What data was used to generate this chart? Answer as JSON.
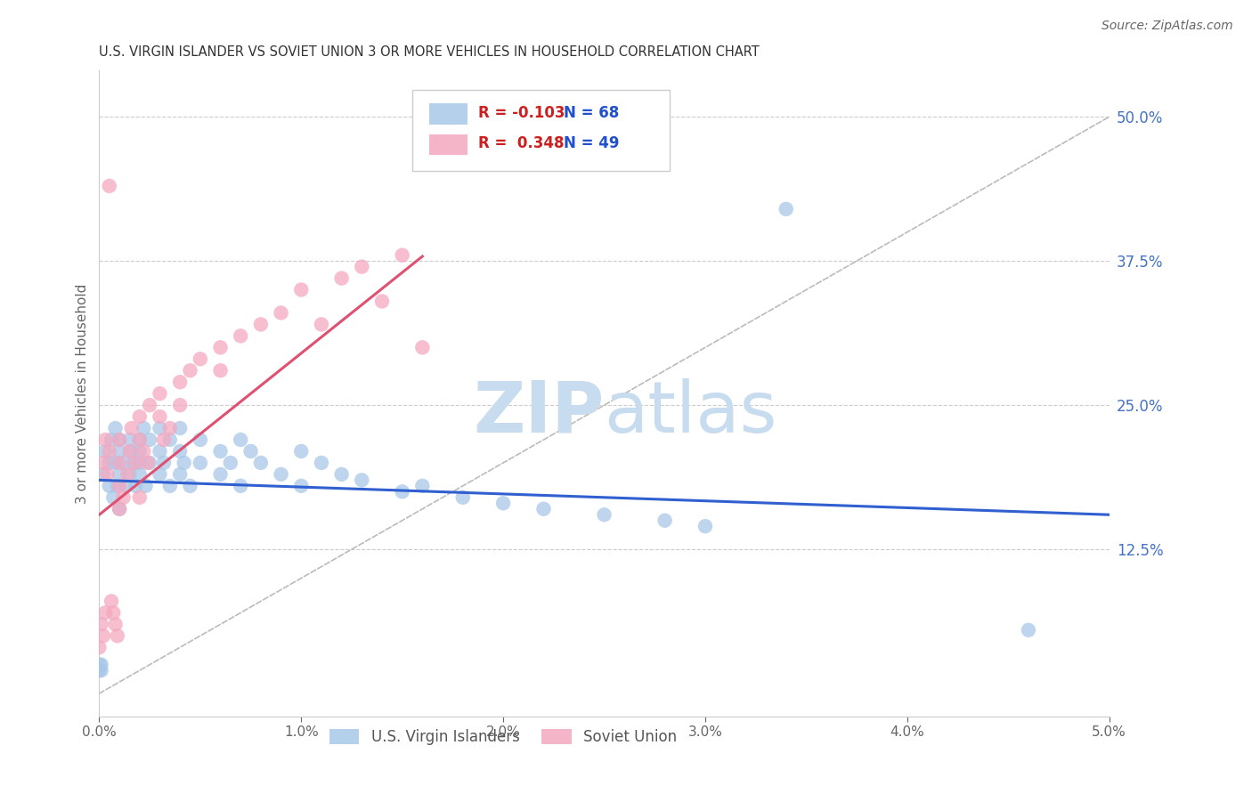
{
  "title": "U.S. VIRGIN ISLANDER VS SOVIET UNION 3 OR MORE VEHICLES IN HOUSEHOLD CORRELATION CHART",
  "source_text": "Source: ZipAtlas.com",
  "ylabel": "3 or more Vehicles in Household",
  "xlim": [
    0.0,
    0.05
  ],
  "ylim": [
    -0.02,
    0.54
  ],
  "right_yticks": [
    0.125,
    0.25,
    0.375,
    0.5
  ],
  "right_yticklabels": [
    "12.5%",
    "25.0%",
    "37.5%",
    "50.0%"
  ],
  "xticklabels": [
    "0.0%",
    "1.0%",
    "2.0%",
    "3.0%",
    "4.0%",
    "5.0%"
  ],
  "xticks": [
    0.0,
    0.01,
    0.02,
    0.03,
    0.04,
    0.05
  ],
  "blue_r": "-0.103",
  "blue_n": "68",
  "pink_r": "0.348",
  "pink_n": "49",
  "blue_color": "#A8C8E8",
  "pink_color": "#F4A8C0",
  "blue_line_color": "#3060D0",
  "pink_line_color": "#E05070",
  "diagonal_color": "#BBBBBB",
  "watermark_zip": "ZIP",
  "watermark_atlas": "atlas",
  "watermark_color_zip": "#C8DCF0",
  "watermark_color_atlas": "#C8DCF0",
  "legend_label_blue": "U.S. Virgin Islanders",
  "legend_label_pink": "Soviet Union"
}
